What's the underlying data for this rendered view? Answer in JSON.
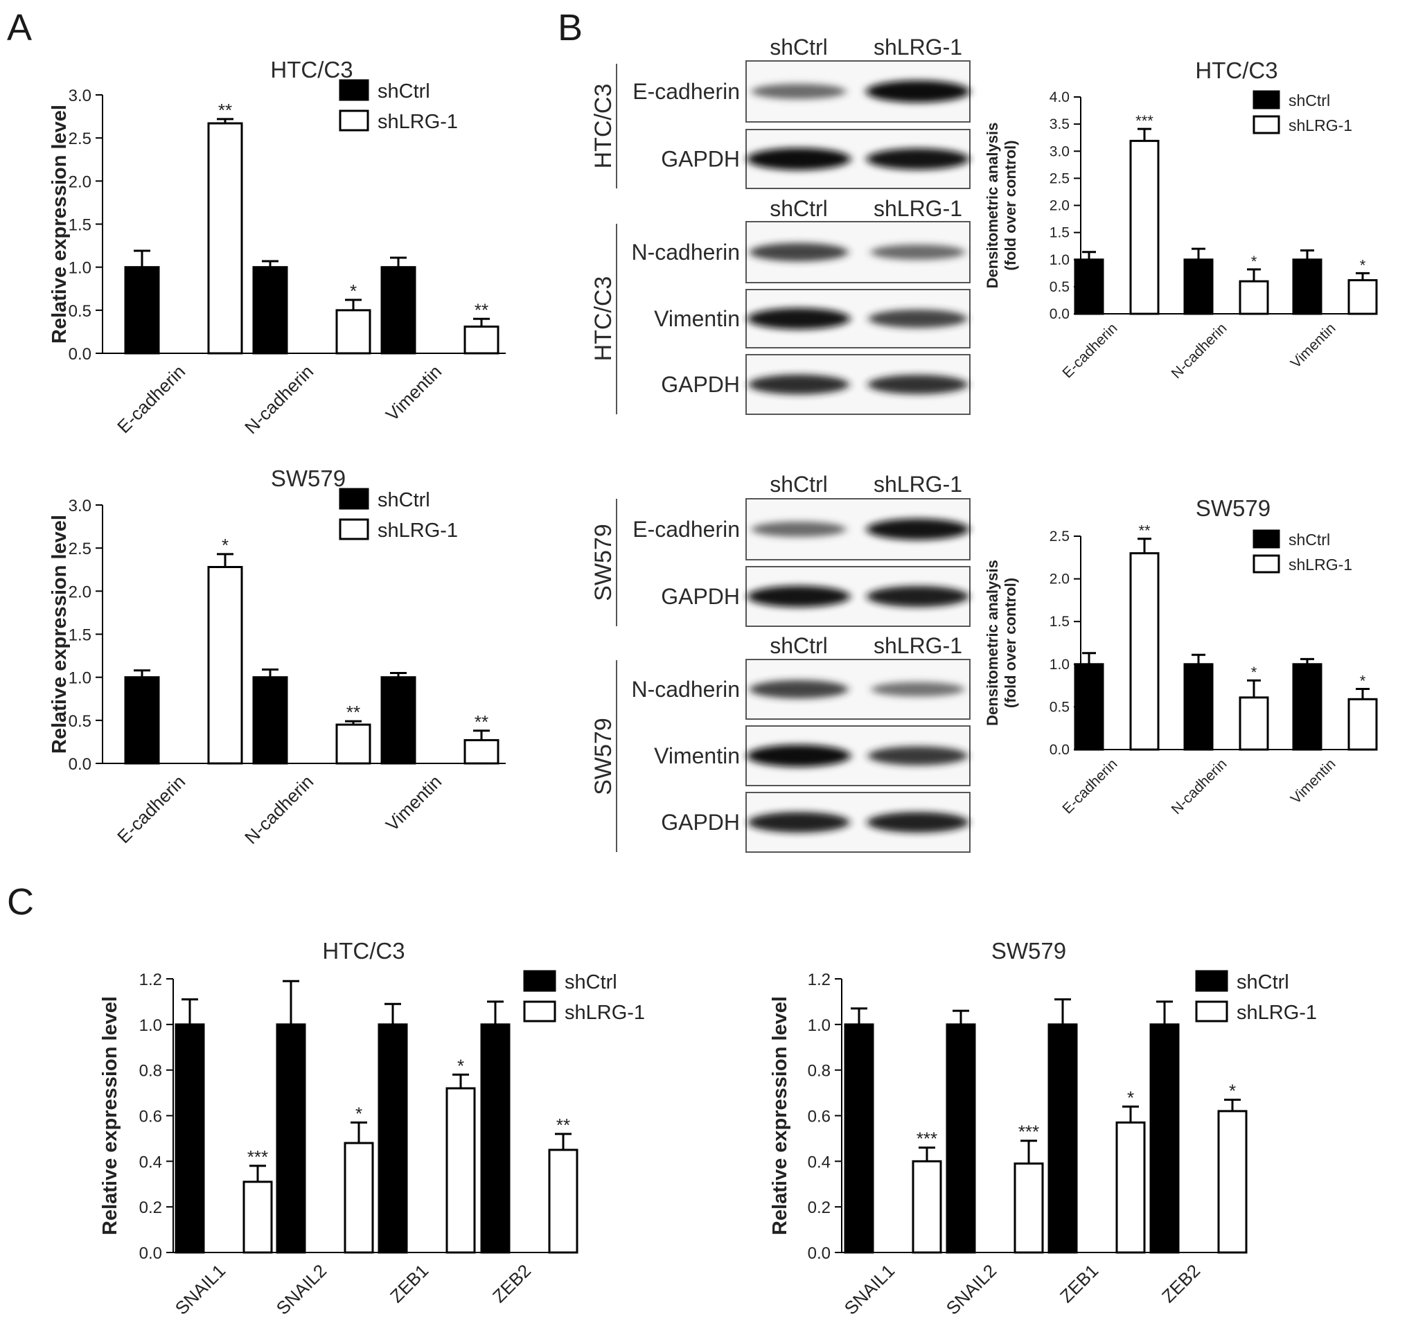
{
  "panels": {
    "a": "A",
    "b": "B",
    "c": "C"
  },
  "legend": {
    "ctrl": "shCtrl",
    "kd": "shLRG-1"
  },
  "colors": {
    "ctrl_fill": "#000000",
    "kd_fill": "#ffffff",
    "axis": "#000000"
  },
  "chart_data": [
    {
      "id": "A-HTC",
      "type": "bar",
      "title": "HTC/C3",
      "ylabel": "Relative expression level",
      "ylim": [
        0,
        3.0
      ],
      "yticks": [
        0.0,
        0.5,
        1.0,
        1.5,
        2.0,
        2.5,
        3.0
      ],
      "ytick_labels": [
        "0.0",
        "0.5",
        "1.0",
        "1.5",
        "2.0",
        "2.5",
        "3.0"
      ],
      "categories": [
        "E-cadherin",
        "N-cadherin",
        "Vimentin"
      ],
      "series": [
        {
          "name": "shCtrl",
          "values": [
            1.0,
            1.0,
            1.0
          ],
          "errors": [
            0.19,
            0.07,
            0.11
          ],
          "sig": [
            "",
            "",
            ""
          ]
        },
        {
          "name": "shLRG-1",
          "values": [
            2.67,
            0.5,
            0.31
          ],
          "errors": [
            0.05,
            0.12,
            0.09
          ],
          "sig": [
            "**",
            "*",
            "**"
          ]
        }
      ]
    },
    {
      "id": "A-SW",
      "type": "bar",
      "title": "SW579",
      "ylabel": "Relative expression level",
      "ylim": [
        0,
        3.0
      ],
      "yticks": [
        0.0,
        0.5,
        1.0,
        1.5,
        2.0,
        2.5,
        3.0
      ],
      "ytick_labels": [
        "0.0",
        "0.5",
        "1.0",
        "1.5",
        "2.0",
        "2.5",
        "3.0"
      ],
      "categories": [
        "E-cadherin",
        "N-cadherin",
        "Vimentin"
      ],
      "series": [
        {
          "name": "shCtrl",
          "values": [
            1.0,
            1.0,
            1.0
          ],
          "errors": [
            0.08,
            0.09,
            0.05
          ],
          "sig": [
            "",
            "",
            ""
          ]
        },
        {
          "name": "shLRG-1",
          "values": [
            2.28,
            0.45,
            0.27
          ],
          "errors": [
            0.15,
            0.04,
            0.11
          ],
          "sig": [
            "*",
            "**",
            "**"
          ]
        }
      ]
    },
    {
      "id": "B-HTC",
      "type": "bar",
      "title": "HTC/C3",
      "ylabel": [
        "Densitometric analysis",
        "(fold over control)"
      ],
      "ylim": [
        0,
        4.0
      ],
      "yticks": [
        0.0,
        0.5,
        1.0,
        1.5,
        2.0,
        2.5,
        3.0,
        3.5,
        4.0
      ],
      "ytick_labels": [
        "0.0",
        "0.5",
        "1.0",
        "1.5",
        "2.0",
        "2.5",
        "3.0",
        "3.5",
        "4.0"
      ],
      "categories": [
        "E-cadherin",
        "N-cadherin",
        "Vimentin"
      ],
      "series": [
        {
          "name": "shCtrl",
          "values": [
            1.0,
            1.0,
            1.0
          ],
          "errors": [
            0.14,
            0.2,
            0.17
          ],
          "sig": [
            "",
            "",
            ""
          ]
        },
        {
          "name": "shLRG-1",
          "values": [
            3.19,
            0.6,
            0.62
          ],
          "errors": [
            0.22,
            0.22,
            0.13
          ],
          "sig": [
            "***",
            "*",
            "*"
          ]
        }
      ]
    },
    {
      "id": "B-SW",
      "type": "bar",
      "title": "SW579",
      "ylabel": [
        "Densitometric analysis",
        "(fold over control)"
      ],
      "ylim": [
        0,
        2.5
      ],
      "yticks": [
        0.0,
        0.5,
        1.0,
        1.5,
        2.0,
        2.5
      ],
      "ytick_labels": [
        "0.0",
        "0.5",
        "1.0",
        "1.5",
        "2.0",
        "2.5"
      ],
      "categories": [
        "E-cadherin",
        "N-cadherin",
        "Vimentin"
      ],
      "series": [
        {
          "name": "shCtrl",
          "values": [
            1.0,
            1.0,
            1.0
          ],
          "errors": [
            0.13,
            0.11,
            0.06
          ],
          "sig": [
            "",
            "",
            ""
          ]
        },
        {
          "name": "shLRG-1",
          "values": [
            2.3,
            0.61,
            0.59
          ],
          "errors": [
            0.17,
            0.2,
            0.12
          ],
          "sig": [
            "**",
            "*",
            "*"
          ]
        }
      ]
    },
    {
      "id": "C-HTC",
      "type": "bar",
      "title": "HTC/C3",
      "ylabel": "Relative expression level",
      "ylim": [
        0,
        1.2
      ],
      "yticks": [
        0.0,
        0.2,
        0.4,
        0.6,
        0.8,
        1.0,
        1.2
      ],
      "ytick_labels": [
        "0.0",
        "0.2",
        "0.4",
        "0.6",
        "0.8",
        "1.0",
        "1.2"
      ],
      "categories": [
        "SNAIL1",
        "SNAIL2",
        "ZEB1",
        "ZEB2"
      ],
      "series": [
        {
          "name": "shCtrl",
          "values": [
            1.0,
            1.0,
            1.0,
            1.0
          ],
          "errors": [
            0.11,
            0.19,
            0.09,
            0.1
          ],
          "sig": [
            "",
            "",
            "",
            ""
          ]
        },
        {
          "name": "shLRG-1",
          "values": [
            0.31,
            0.48,
            0.72,
            0.45
          ],
          "errors": [
            0.07,
            0.09,
            0.06,
            0.07
          ],
          "sig": [
            "***",
            "*",
            "*",
            "**"
          ]
        }
      ]
    },
    {
      "id": "C-SW",
      "type": "bar",
      "title": "SW579",
      "ylabel": "Relative expression level",
      "ylim": [
        0,
        1.2
      ],
      "yticks": [
        0.0,
        0.2,
        0.4,
        0.6,
        0.8,
        1.0,
        1.2
      ],
      "ytick_labels": [
        "0.0",
        "0.2",
        "0.4",
        "0.6",
        "0.8",
        "1.0",
        "1.2"
      ],
      "categories": [
        "SNAIL1",
        "SNAIL2",
        "ZEB1",
        "ZEB2"
      ],
      "series": [
        {
          "name": "shCtrl",
          "values": [
            1.0,
            1.0,
            1.0,
            1.0
          ],
          "errors": [
            0.07,
            0.06,
            0.11,
            0.1
          ],
          "sig": [
            "",
            "",
            "",
            ""
          ]
        },
        {
          "name": "shLRG-1",
          "values": [
            0.4,
            0.39,
            0.57,
            0.62
          ],
          "errors": [
            0.06,
            0.1,
            0.07,
            0.05
          ],
          "sig": [
            "***",
            "***",
            "*",
            "*"
          ]
        }
      ]
    }
  ],
  "blots": [
    {
      "id": "HTC-E",
      "cell_line": "HTC/C3",
      "lanes": [
        "shCtrl",
        "shLRG-1"
      ],
      "proteins": [
        "E-cadherin",
        "GAPDH"
      ],
      "intensity": [
        [
          0.55,
          1.0
        ],
        [
          1.0,
          0.95
        ]
      ]
    },
    {
      "id": "HTC-NV",
      "cell_line": "HTC/C3",
      "lanes": [
        "shCtrl",
        "shLRG-1"
      ],
      "proteins": [
        "N-cadherin",
        "Vimentin",
        "GAPDH"
      ],
      "intensity": [
        [
          0.75,
          0.55
        ],
        [
          0.95,
          0.75
        ],
        [
          0.85,
          0.82
        ]
      ]
    },
    {
      "id": "SW-E",
      "cell_line": "SW579",
      "lanes": [
        "shCtrl",
        "shLRG-1"
      ],
      "proteins": [
        "E-cadherin",
        "GAPDH"
      ],
      "intensity": [
        [
          0.55,
          0.95
        ],
        [
          0.95,
          0.92
        ]
      ]
    },
    {
      "id": "SW-NV",
      "cell_line": "SW579",
      "lanes": [
        "shCtrl",
        "shLRG-1"
      ],
      "proteins": [
        "N-cadherin",
        "Vimentin",
        "GAPDH"
      ],
      "intensity": [
        [
          0.75,
          0.5
        ],
        [
          1.0,
          0.8
        ],
        [
          0.9,
          0.9
        ]
      ]
    }
  ]
}
